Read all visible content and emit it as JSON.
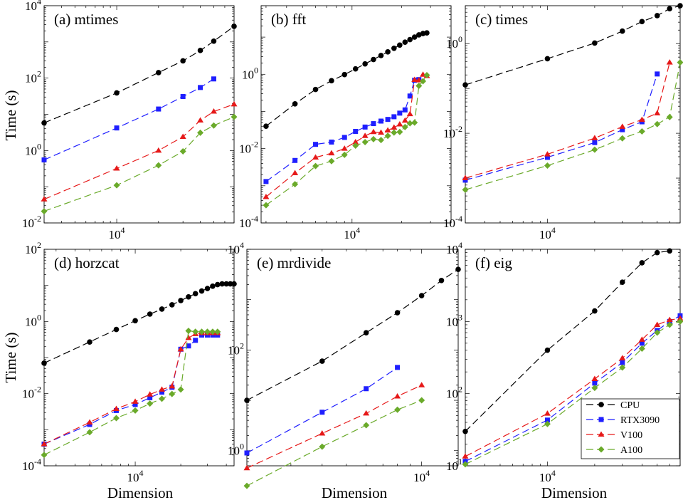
{
  "legend": {
    "placement": "bottom-right of panel (f)",
    "entries": [
      "CPU",
      "RTX3090",
      "V100",
      "A100"
    ]
  },
  "series_style": {
    "CPU": {
      "color": "#000000",
      "marker": "circle"
    },
    "RTX3090": {
      "color": "#1f1fff",
      "marker": "square"
    },
    "V100": {
      "color": "#e61919",
      "marker": "triangle"
    },
    "A100": {
      "color": "#6aaa2a",
      "marker": "diamond"
    }
  },
  "axis_labels": {
    "ylabel": "Time (s)",
    "xlabel": "Dimension"
  },
  "chart_data": [
    {
      "type": "line",
      "title": "(a) mtimes",
      "xscale": "log",
      "yscale": "log",
      "xlim": [
        3000,
        70000
      ],
      "ylim": [
        0.01,
        10000
      ],
      "xticks": [
        {
          "value": 10000,
          "base": "10",
          "exp": "4"
        }
      ],
      "yticks": [
        {
          "value": 0.01,
          "base": "10",
          "exp": "-2"
        },
        {
          "value": 1,
          "base": "10",
          "exp": "0"
        },
        {
          "value": 100,
          "base": "10",
          "exp": "2"
        },
        {
          "value": 10000,
          "base": "10",
          "exp": "4"
        }
      ],
      "series": [
        {
          "name": "CPU",
          "x": [
            3000,
            10000,
            20000,
            30000,
            40000,
            50000,
            70000
          ],
          "y": [
            5.8,
            39,
            142,
            300,
            580,
            1050,
            2700
          ]
        },
        {
          "name": "RTX3090",
          "x": [
            3000,
            10000,
            20000,
            30000,
            40000,
            50000
          ],
          "y": [
            0.55,
            4.2,
            14,
            31,
            55,
            95
          ]
        },
        {
          "name": "V100",
          "x": [
            3000,
            10000,
            20000,
            30000,
            40000,
            50000,
            70000
          ],
          "y": [
            0.045,
            0.32,
            1.0,
            2.4,
            6.8,
            12,
            19
          ]
        },
        {
          "name": "A100",
          "x": [
            3000,
            10000,
            20000,
            30000,
            40000,
            50000,
            70000
          ],
          "y": [
            0.021,
            0.11,
            0.39,
            0.95,
            3.1,
            4.9,
            8.5
          ]
        }
      ]
    },
    {
      "type": "line",
      "title": "(b) fft",
      "xscale": "log",
      "yscale": "log",
      "xlim": [
        2800,
        40000
      ],
      "ylim": [
        0.0001,
        70
      ],
      "xticks": [
        {
          "value": 10000,
          "base": "10",
          "exp": "4"
        }
      ],
      "yticks": [
        {
          "value": 0.0001,
          "base": "10",
          "exp": "-4"
        },
        {
          "value": 0.01,
          "base": "10",
          "exp": "-2"
        },
        {
          "value": 1,
          "base": "10",
          "exp": "0"
        }
      ],
      "series": [
        {
          "name": "CPU",
          "x": [
            3000,
            4500,
            6000,
            7500,
            9000,
            10500,
            12000,
            13500,
            15000,
            16500,
            18000,
            19500,
            21000,
            22500,
            24000,
            25500,
            27000,
            28500
          ],
          "y": [
            0.04,
            0.16,
            0.39,
            0.67,
            0.98,
            1.4,
            1.9,
            2.5,
            3.2,
            4.0,
            5.0,
            6.1,
            7.3,
            8.6,
            10,
            11.5,
            12.5,
            13
          ]
        },
        {
          "name": "RTX3090",
          "x": [
            3000,
            4500,
            6000,
            7500,
            9000,
            10500,
            12000,
            13500,
            15000,
            16500,
            18000,
            19500,
            21000,
            22500,
            24000,
            25500
          ],
          "y": [
            0.0013,
            0.0048,
            0.013,
            0.015,
            0.02,
            0.029,
            0.038,
            0.047,
            0.055,
            0.061,
            0.072,
            0.09,
            0.11,
            0.26,
            0.69,
            0.72
          ]
        },
        {
          "name": "V100",
          "x": [
            3000,
            4500,
            6000,
            7500,
            9000,
            10500,
            12000,
            13500,
            15000,
            16500,
            18000,
            19500,
            21000,
            22500,
            24000,
            25500,
            27000,
            28500
          ],
          "y": [
            0.0005,
            0.0022,
            0.0058,
            0.0075,
            0.01,
            0.015,
            0.022,
            0.028,
            0.027,
            0.031,
            0.037,
            0.045,
            0.057,
            0.085,
            0.71,
            0.69,
            0.98,
            0.9
          ]
        },
        {
          "name": "A100",
          "x": [
            3000,
            4500,
            6000,
            7500,
            9000,
            10500,
            12000,
            13500,
            15000,
            16500,
            18000,
            19500,
            21000,
            22500,
            24000,
            25500,
            27000,
            28500
          ],
          "y": [
            0.0003,
            0.0011,
            0.0034,
            0.0046,
            0.0068,
            0.012,
            0.015,
            0.018,
            0.017,
            0.022,
            0.027,
            0.028,
            0.038,
            0.048,
            0.05,
            0.49,
            0.65,
            0.95
          ]
        }
      ]
    },
    {
      "type": "line",
      "title": "(c) times",
      "xscale": "log",
      "yscale": "log",
      "xlim": [
        3000,
        70000
      ],
      "ylim": [
        0.0001,
        7
      ],
      "xticks": [
        {
          "value": 10000,
          "base": "10",
          "exp": "4"
        }
      ],
      "yticks": [
        {
          "value": 0.0001,
          "base": "10",
          "exp": "-4"
        },
        {
          "value": 0.01,
          "base": "10",
          "exp": "-2"
        },
        {
          "value": 1,
          "base": "10",
          "exp": "0"
        }
      ],
      "series": [
        {
          "name": "CPU",
          "x": [
            3000,
            10000,
            20000,
            30000,
            40000,
            50000,
            60000,
            70000
          ],
          "y": [
            0.12,
            0.46,
            1.03,
            1.9,
            3.1,
            4.2,
            6.0,
            7.0
          ]
        },
        {
          "name": "RTX3090",
          "x": [
            3000,
            10000,
            20000,
            30000,
            40000,
            50000
          ],
          "y": [
            0.0009,
            0.0029,
            0.0062,
            0.012,
            0.018,
            0.21
          ]
        },
        {
          "name": "V100",
          "x": [
            3000,
            10000,
            20000,
            30000,
            40000,
            50000,
            60000
          ],
          "y": [
            0.001,
            0.0034,
            0.0078,
            0.014,
            0.02,
            0.028,
            0.38
          ]
        },
        {
          "name": "A100",
          "x": [
            3000,
            10000,
            20000,
            30000,
            40000,
            50000,
            60000,
            70000
          ],
          "y": [
            0.00055,
            0.0019,
            0.0043,
            0.0077,
            0.011,
            0.016,
            0.023,
            0.38
          ]
        }
      ]
    },
    {
      "type": "line",
      "title": "(d) horzcat",
      "xscale": "log",
      "yscale": "log",
      "xlim": [
        2500,
        45000
      ],
      "ylim": [
        0.0001,
        100
      ],
      "xticks": [
        {
          "value": 10000,
          "base": "10",
          "exp": "4"
        }
      ],
      "yticks": [
        {
          "value": 0.0001,
          "base": "10",
          "exp": "-4"
        },
        {
          "value": 0.01,
          "base": "10",
          "exp": "-2"
        },
        {
          "value": 1,
          "base": "10",
          "exp": "0"
        },
        {
          "value": 100,
          "base": "10",
          "exp": "2"
        }
      ],
      "series": [
        {
          "name": "CPU",
          "x": [
            2500,
            5000,
            7500,
            10000,
            12500,
            15000,
            17500,
            20000,
            22500,
            25000,
            27500,
            30000,
            32500,
            35000,
            37500,
            40000,
            42500,
            45000
          ],
          "y": [
            0.07,
            0.27,
            0.6,
            1.05,
            1.6,
            2.2,
            2.9,
            3.8,
            4.8,
            5.9,
            7.0,
            8.2,
            9.5,
            10.5,
            11,
            11,
            11,
            11
          ]
        },
        {
          "name": "RTX3090",
          "x": [
            2500,
            5000,
            7500,
            10000,
            12500,
            15000,
            17500,
            20000,
            22500,
            25000,
            27500,
            30000,
            32500,
            35000
          ],
          "y": [
            0.0004,
            0.0014,
            0.0034,
            0.005,
            0.0077,
            0.011,
            0.015,
            0.17,
            0.21,
            0.3,
            0.42,
            0.42,
            0.42,
            0.42
          ]
        },
        {
          "name": "V100",
          "x": [
            2500,
            5000,
            7500,
            10000,
            12500,
            15000,
            17500,
            20000,
            22500,
            25000,
            27500,
            30000,
            32500,
            35000
          ],
          "y": [
            0.0004,
            0.0016,
            0.0038,
            0.006,
            0.0095,
            0.013,
            0.016,
            0.17,
            0.35,
            0.45,
            0.48,
            0.48,
            0.48,
            0.48
          ]
        },
        {
          "name": "A100",
          "x": [
            2500,
            5000,
            7500,
            10000,
            12500,
            15000,
            17500,
            20000,
            22500,
            25000,
            27500,
            30000,
            32500,
            35000
          ],
          "y": [
            0.0002,
            0.00085,
            0.0021,
            0.0034,
            0.0053,
            0.0072,
            0.0098,
            0.013,
            0.55,
            0.52,
            0.52,
            0.52,
            0.52,
            0.52
          ]
        }
      ]
    },
    {
      "type": "line",
      "title": "(e) mrdivide",
      "xscale": "log",
      "yscale": "log",
      "xlim": [
        2000,
        14000
      ],
      "ylim": [
        0.5,
        10000
      ],
      "xticks": [
        {
          "value": 10000,
          "base": "10",
          "exp": "4"
        }
      ],
      "yticks": [
        {
          "value": 1,
          "base": "10",
          "exp": "0"
        },
        {
          "value": 100,
          "base": "10",
          "exp": "2"
        },
        {
          "value": 10000,
          "base": "10",
          "exp": "4"
        }
      ],
      "series": [
        {
          "name": "CPU",
          "x": [
            2000,
            4000,
            6000,
            8000,
            10000,
            12000,
            14000
          ],
          "y": [
            10,
            60,
            220,
            550,
            1200,
            2400,
            4000
          ]
        },
        {
          "name": "RTX3090",
          "x": [
            2000,
            4000,
            6000,
            8000
          ],
          "y": [
            0.9,
            5.8,
            17,
            45
          ]
        },
        {
          "name": "V100",
          "x": [
            2000,
            4000,
            6000,
            8000,
            10000
          ],
          "y": [
            0.45,
            2.2,
            5.5,
            12,
            20
          ]
        },
        {
          "name": "A100",
          "x": [
            2000,
            4000,
            6000,
            8000,
            10000
          ],
          "y": [
            0.2,
            1.2,
            3.2,
            6.5,
            10
          ]
        }
      ]
    },
    {
      "type": "line",
      "title": "(f) eig",
      "xscale": "log",
      "yscale": "log",
      "xlim": [
        3000,
        70000
      ],
      "ylim": [
        10,
        10000
      ],
      "xticks": [
        {
          "value": 10000,
          "base": "10",
          "exp": "4"
        }
      ],
      "yticks": [
        {
          "value": 10,
          "base": "10",
          "exp": "1"
        },
        {
          "value": 100,
          "base": "10",
          "exp": "2"
        },
        {
          "value": 1000,
          "base": "10",
          "exp": "3"
        },
        {
          "value": 10000,
          "base": "10",
          "exp": "4"
        }
      ],
      "series": [
        {
          "name": "CPU",
          "x": [
            3000,
            10000,
            20000,
            30000,
            40000,
            50000,
            60000
          ],
          "y": [
            30,
            400,
            1400,
            3500,
            6500,
            9000,
            9500
          ]
        },
        {
          "name": "RTX3090",
          "x": [
            3000,
            10000,
            20000,
            30000,
            40000,
            50000,
            60000,
            70000
          ],
          "y": [
            11.5,
            43,
            140,
            270,
            500,
            750,
            1000,
            1200
          ]
        },
        {
          "name": "V100",
          "x": [
            3000,
            10000,
            20000,
            30000,
            40000,
            50000,
            60000,
            70000
          ],
          "y": [
            13.5,
            53,
            160,
            310,
            560,
            900,
            1050,
            1100
          ]
        },
        {
          "name": "A100",
          "x": [
            3000,
            10000,
            20000,
            30000,
            40000,
            50000,
            60000,
            70000
          ],
          "y": [
            10.5,
            38,
            120,
            230,
            420,
            700,
            900,
            1000
          ]
        }
      ]
    }
  ]
}
